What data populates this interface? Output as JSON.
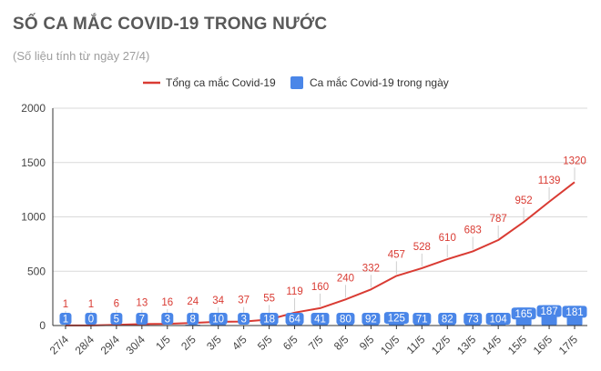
{
  "title": "SỐ CA MẮC COVID-19 TRONG NƯỚC",
  "subtitle": "(Số liệu tính từ ngày 27/4)",
  "colors": {
    "line": "#d93b33",
    "bar": "#4a86e8",
    "grid": "#d9d9d9",
    "axis": "#333333"
  },
  "chart_data": {
    "type": "bar",
    "categories": [
      "27/4",
      "28/4",
      "29/4",
      "30/4",
      "1/5",
      "2/5",
      "3/5",
      "4/5",
      "5/5",
      "6/5",
      "7/5",
      "8/5",
      "9/5",
      "10/5",
      "11/5",
      "12/5",
      "13/5",
      "14/5",
      "15/5",
      "16/5",
      "17/5"
    ],
    "series": [
      {
        "name": "Tổng ca mắc Covid-19",
        "type": "line",
        "values": [
          1,
          1,
          6,
          13,
          16,
          24,
          34,
          37,
          55,
          119,
          160,
          240,
          332,
          457,
          528,
          610,
          683,
          787,
          952,
          1139,
          1320
        ]
      },
      {
        "name": "Ca mắc Covid-19 trong ngày",
        "type": "bar",
        "values": [
          1,
          0,
          5,
          7,
          3,
          8,
          10,
          3,
          18,
          64,
          41,
          80,
          92,
          125,
          71,
          82,
          73,
          104,
          165,
          187,
          181
        ]
      }
    ],
    "yticks": [
      0,
      500,
      1000,
      1500,
      2000
    ],
    "ylim": [
      0,
      2000
    ],
    "grid": true,
    "legend": "top"
  }
}
